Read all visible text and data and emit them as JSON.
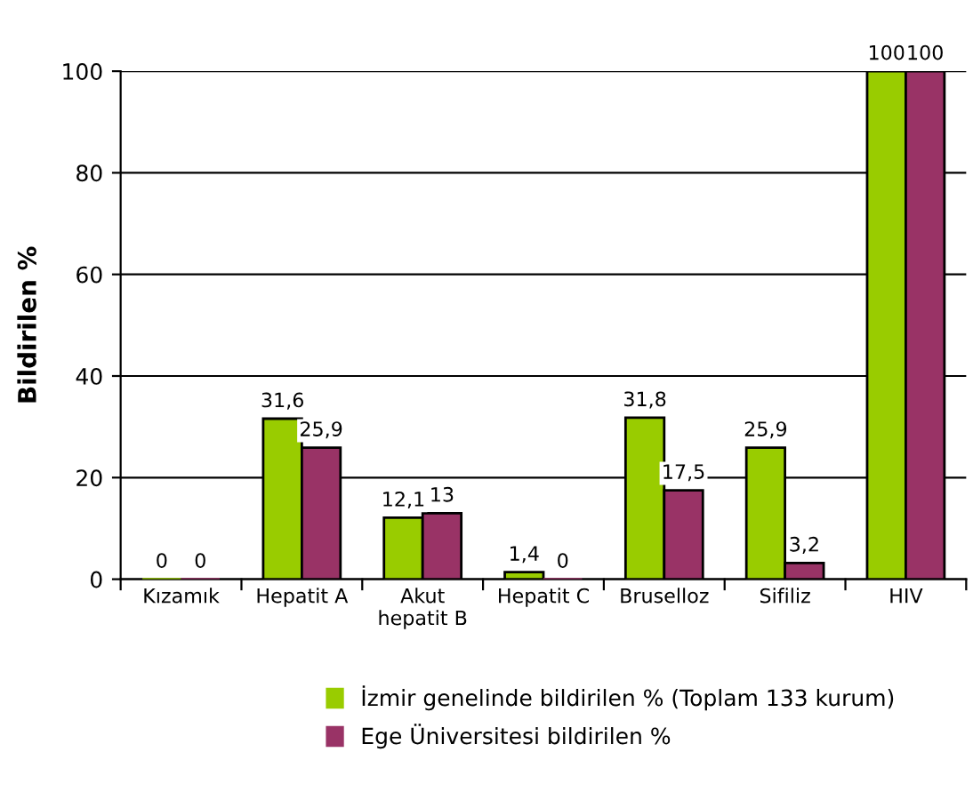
{
  "chart_data": {
    "type": "bar",
    "ylabel": "Bildirilen %",
    "categories": [
      "Kızamık",
      "Hepatit A",
      "Akut\nhepatit B",
      "Hepatit C",
      "Bruselloz",
      "Sifiliz",
      "HIV"
    ],
    "series": [
      {
        "name": "İzmir genelinde bildirilen % (Toplam 133 kurum)",
        "color": "#99cc00",
        "values": [
          0,
          31.6,
          12.1,
          1.4,
          31.8,
          25.9,
          100
        ],
        "value_labels": [
          "0",
          "31,6",
          "12,1",
          "1,4",
          "31,8",
          "25,9",
          "100"
        ]
      },
      {
        "name": "Ege Üniversitesi bildirilen %",
        "color": "#993366",
        "values": [
          0,
          25.9,
          13,
          0,
          17.5,
          3.2,
          100
        ],
        "value_labels": [
          "0",
          "25,9",
          "13",
          "0",
          "17,5",
          "3,2",
          "100"
        ]
      }
    ],
    "ylim": [
      0,
      100
    ],
    "yticks": [
      0,
      20,
      40,
      60,
      80,
      100
    ],
    "grid": "y",
    "legend": "bottom"
  }
}
